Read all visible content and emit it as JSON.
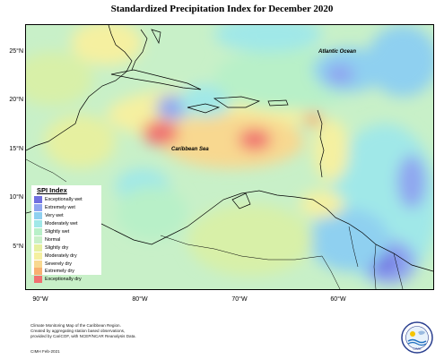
{
  "title": "Standardized Precipitation Index for December 2020",
  "sea_labels": {
    "atlantic": "Atlantic Ocean",
    "caribbean": "Caribbean Sea"
  },
  "lat_labels": [
    "25°N",
    "20°N",
    "15°N",
    "10°N",
    "5°N"
  ],
  "lon_labels": [
    "90°W",
    "80°W",
    "70°W",
    "60°W"
  ],
  "legend": {
    "title": "SPI Index",
    "items": [
      {
        "label": "Exceptionally wet",
        "color": "#7070e0"
      },
      {
        "label": "Extremely wet",
        "color": "#8fa6f0"
      },
      {
        "label": "Very wet",
        "color": "#8fd0f0"
      },
      {
        "label": "Moderately wet",
        "color": "#a0e8e8"
      },
      {
        "label": "Slightly wet",
        "color": "#b8f0c8"
      },
      {
        "label": "Normal",
        "color": "#c8f0c8"
      },
      {
        "label": "Slightly dry",
        "color": "#e6f0a0"
      },
      {
        "label": "Moderately dry",
        "color": "#f5f0a0"
      },
      {
        "label": "Severely dry",
        "color": "#f8d890"
      },
      {
        "label": "Extremely dry",
        "color": "#f8b070"
      },
      {
        "label": "Exceptionally dry",
        "color": "#f07070"
      }
    ]
  },
  "footer": {
    "line1": "Climate Monitoring Map of the Caribbean Region.",
    "line2": "Created by aggregating station based observations,",
    "line3": "provided by CariCOF, with NCEP/NCAR Reanalysis Data.",
    "credit": "CIMH Feb-2021"
  },
  "logo": {
    "name": "CIMH",
    "icon": "cimh-logo-icon"
  }
}
